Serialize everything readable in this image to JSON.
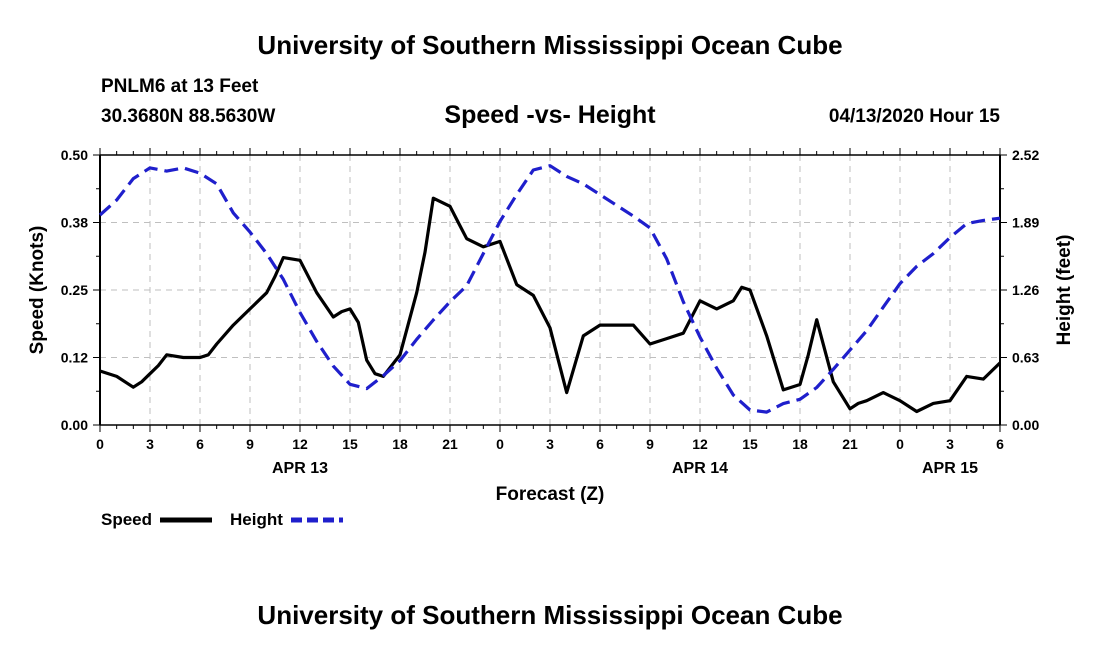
{
  "header": {
    "title": "University of Southern Mississippi Ocean Cube",
    "station": "PNLM6 at 13 Feet",
    "coords": "30.3680N 88.5630W",
    "datetime": "04/13/2020 Hour 15"
  },
  "footer": {
    "title": "University of Southern Mississippi Ocean Cube"
  },
  "chart_data": {
    "type": "line",
    "title": "Speed -vs- Height",
    "xlabel": "Forecast (Z)",
    "ylabel": "Speed (Knots)",
    "y2label": "Height (feet)",
    "xlim": [
      0,
      54
    ],
    "ylim": [
      0,
      0.5
    ],
    "y2lim": [
      0,
      2.52
    ],
    "x_ticks": [
      0,
      3,
      6,
      9,
      12,
      15,
      18,
      21,
      24,
      27,
      30,
      33,
      36,
      39,
      42,
      45,
      48,
      51,
      54
    ],
    "x_tick_labels": [
      "0",
      "3",
      "6",
      "9",
      "12",
      "15",
      "18",
      "21",
      "0",
      "3",
      "6",
      "9",
      "12",
      "15",
      "18",
      "21",
      "0",
      "3",
      "6"
    ],
    "y_ticks": [
      0,
      0.125,
      0.25,
      0.375,
      0.5
    ],
    "y_tick_labels": [
      "0.00",
      "0.12",
      "0.25",
      "0.38",
      "0.50"
    ],
    "y2_ticks": [
      0,
      0.63,
      1.26,
      1.89,
      2.52
    ],
    "y2_tick_labels": [
      "0.00",
      "0.63",
      "1.26",
      "1.89",
      "2.52"
    ],
    "date_labels": [
      {
        "x": 12,
        "label": "APR 13"
      },
      {
        "x": 36,
        "label": "APR 14"
      },
      {
        "x": 51,
        "label": "APR 15"
      }
    ],
    "grid": true,
    "colors": {
      "speed": "#000000",
      "height": "#1f1fcc",
      "grid": "#bfbfbf"
    },
    "legend": [
      {
        "name": "Speed",
        "style": "solid",
        "color": "#000000"
      },
      {
        "name": "Height",
        "style": "dashed",
        "color": "#1f1fcc"
      }
    ],
    "series": [
      {
        "name": "Speed",
        "axis": "left",
        "x": [
          0,
          1,
          2,
          2.5,
          3,
          3.5,
          4,
          5,
          6,
          6.5,
          7,
          8,
          9,
          10,
          10.5,
          11,
          12,
          13,
          14,
          14.5,
          15,
          15.5,
          16,
          16.5,
          17,
          18,
          19,
          19.5,
          20,
          21,
          21.5,
          22,
          23,
          24,
          25,
          26,
          27,
          27.5,
          28,
          29,
          30,
          31,
          32,
          33,
          34,
          35,
          36,
          37,
          38,
          38.5,
          39,
          40,
          41,
          42,
          42.5,
          43,
          44,
          45,
          45.5,
          46,
          47,
          48,
          49,
          50,
          51,
          52,
          53,
          54
        ],
        "y": [
          0.1,
          0.09,
          0.07,
          0.08,
          0.095,
          0.11,
          0.13,
          0.125,
          0.125,
          0.13,
          0.15,
          0.185,
          0.215,
          0.245,
          0.275,
          0.31,
          0.305,
          0.245,
          0.2,
          0.21,
          0.215,
          0.19,
          0.12,
          0.095,
          0.09,
          0.13,
          0.245,
          0.32,
          0.42,
          0.405,
          0.375,
          0.345,
          0.33,
          0.34,
          0.26,
          0.24,
          0.18,
          0.12,
          0.06,
          0.165,
          0.185,
          0.185,
          0.185,
          0.15,
          0.16,
          0.17,
          0.23,
          0.215,
          0.23,
          0.255,
          0.25,
          0.165,
          0.065,
          0.075,
          0.13,
          0.195,
          0.08,
          0.03,
          0.04,
          0.045,
          0.06,
          0.045,
          0.025,
          0.04,
          0.045,
          0.09,
          0.085,
          0.115
        ],
        "note": "values in knots"
      },
      {
        "name": "Height",
        "axis": "right",
        "x": [
          0,
          1,
          2,
          3,
          4,
          5,
          6,
          7,
          8,
          9,
          10,
          11,
          12,
          13,
          14,
          15,
          16,
          17,
          18,
          19,
          20,
          21,
          22,
          23,
          24,
          25,
          26,
          27,
          28,
          29,
          30,
          31,
          32,
          33,
          34,
          35,
          36,
          37,
          38,
          39,
          40,
          41,
          42,
          43,
          44,
          45,
          46,
          47,
          48,
          49,
          50,
          51,
          52,
          53,
          54
        ],
        "y": [
          1.96,
          2.1,
          2.3,
          2.4,
          2.37,
          2.4,
          2.35,
          2.25,
          1.98,
          1.8,
          1.6,
          1.36,
          1.05,
          0.78,
          0.55,
          0.38,
          0.34,
          0.46,
          0.6,
          0.8,
          0.98,
          1.15,
          1.3,
          1.6,
          1.9,
          2.15,
          2.38,
          2.42,
          2.32,
          2.25,
          2.15,
          2.05,
          1.95,
          1.84,
          1.55,
          1.15,
          0.82,
          0.53,
          0.28,
          0.14,
          0.12,
          0.2,
          0.24,
          0.35,
          0.52,
          0.7,
          0.88,
          1.1,
          1.32,
          1.48,
          1.6,
          1.75,
          1.88,
          1.91,
          1.93
        ],
        "note": "values in feet"
      }
    ]
  }
}
